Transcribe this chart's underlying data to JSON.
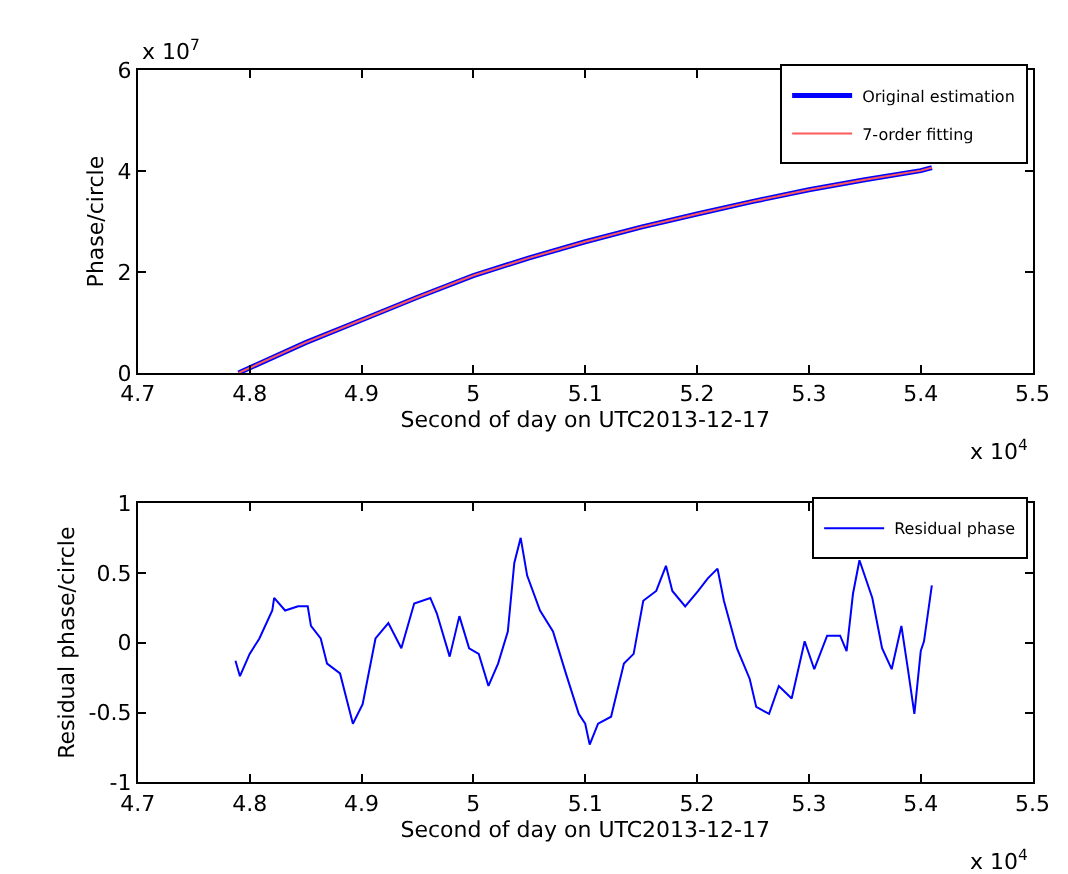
{
  "chart_data": [
    {
      "type": "line",
      "xlabel": "Second of day on UTC2013-12-17",
      "ylabel": "Phase/circle",
      "x": [
        4.79,
        4.85,
        4.9,
        4.95,
        5.0,
        5.05,
        5.1,
        5.15,
        5.2,
        5.25,
        5.3,
        5.35,
        5.4,
        5.41
      ],
      "series": [
        {
          "name": "Original estimation",
          "color": "#0000ff",
          "values": [
            0,
            0.6,
            1.05,
            1.5,
            1.93,
            2.28,
            2.6,
            2.89,
            3.15,
            3.4,
            3.63,
            3.83,
            4.01,
            4.07
          ]
        },
        {
          "name": "7-order fitting",
          "color": "#ff5a5a",
          "values": [
            0,
            0.6,
            1.05,
            1.5,
            1.93,
            2.28,
            2.6,
            2.89,
            3.15,
            3.4,
            3.63,
            3.83,
            4.01,
            4.07
          ]
        }
      ],
      "xlim": [
        4.7,
        5.5
      ],
      "xticks": [
        4.7,
        4.8,
        4.9,
        5,
        5.1,
        5.2,
        5.3,
        5.4,
        5.5
      ],
      "ylim": [
        0,
        6
      ],
      "yticks": [
        0,
        2,
        4,
        6
      ],
      "annotations": [
        "x 10$^{7}$",
        "x 10$^{4}$"
      ],
      "legend": "top right",
      "marker": "none",
      "line_style": "solid"
    },
    {
      "type": "line",
      "xlabel": "Second of day on UTC2013-12-17",
      "ylabel": "Residual phase/circle",
      "x": [
        4.7873,
        4.7913,
        4.8,
        4.8087,
        4.8202,
        4.8219,
        4.8317,
        4.8433,
        4.8519,
        4.8548,
        4.8635,
        4.8692,
        4.8808,
        4.8923,
        4.901,
        4.9125,
        4.924,
        4.9356,
        4.9471,
        4.9615,
        4.9673,
        4.9788,
        4.9875,
        4.9962,
        5.0048,
        5.0135,
        5.0221,
        5.0308,
        5.0366,
        5.0423,
        5.0481,
        5.0596,
        5.0712,
        5.0827,
        5.0942,
        5.1,
        5.104,
        5.1115,
        5.1231,
        5.1346,
        5.1433,
        5.1519,
        5.1635,
        5.1722,
        5.1779,
        5.1894,
        5.201,
        5.2096,
        5.2183,
        5.224,
        5.2356,
        5.2471,
        5.2529,
        5.2644,
        5.2731,
        5.2846,
        5.2962,
        5.3048,
        5.3163,
        5.3279,
        5.3337,
        5.3394,
        5.3452,
        5.3567,
        5.3654,
        5.374,
        5.3827,
        5.3885,
        5.3943,
        5.4,
        5.4029,
        5.4099
      ],
      "series": [
        {
          "name": "Residual phase",
          "color": "#0000ff",
          "values": [
            -0.13,
            -0.24,
            -0.08,
            0.03,
            0.23,
            0.32,
            0.23,
            0.26,
            0.26,
            0.12,
            0.03,
            -0.15,
            -0.22,
            -0.58,
            -0.44,
            0.03,
            0.14,
            -0.04,
            0.28,
            0.32,
            0.21,
            -0.1,
            0.19,
            -0.04,
            -0.08,
            -0.31,
            -0.15,
            0.08,
            0.57,
            0.75,
            0.48,
            0.23,
            0.08,
            -0.22,
            -0.51,
            -0.58,
            -0.73,
            -0.58,
            -0.53,
            -0.15,
            -0.08,
            0.3,
            0.37,
            0.55,
            0.37,
            0.26,
            0.37,
            0.46,
            0.53,
            0.3,
            -0.04,
            -0.26,
            -0.46,
            -0.51,
            -0.31,
            -0.4,
            0.01,
            -0.19,
            0.05,
            0.05,
            -0.06,
            0.35,
            0.59,
            0.32,
            -0.04,
            -0.19,
            0.12,
            -0.19,
            -0.51,
            -0.06,
            0.01,
            0.41
          ]
        }
      ],
      "xlim": [
        4.7,
        5.5
      ],
      "xticks": [
        4.7,
        4.8,
        4.9,
        5,
        5.1,
        5.2,
        5.3,
        5.4,
        5.5
      ],
      "ylim": [
        -1,
        1
      ],
      "yticks": [
        -1,
        -0.5,
        0,
        0.5,
        1
      ],
      "annotations": [
        "x 10$^{4}$"
      ],
      "legend": "top right",
      "marker": "none",
      "line_style": "solid"
    }
  ]
}
